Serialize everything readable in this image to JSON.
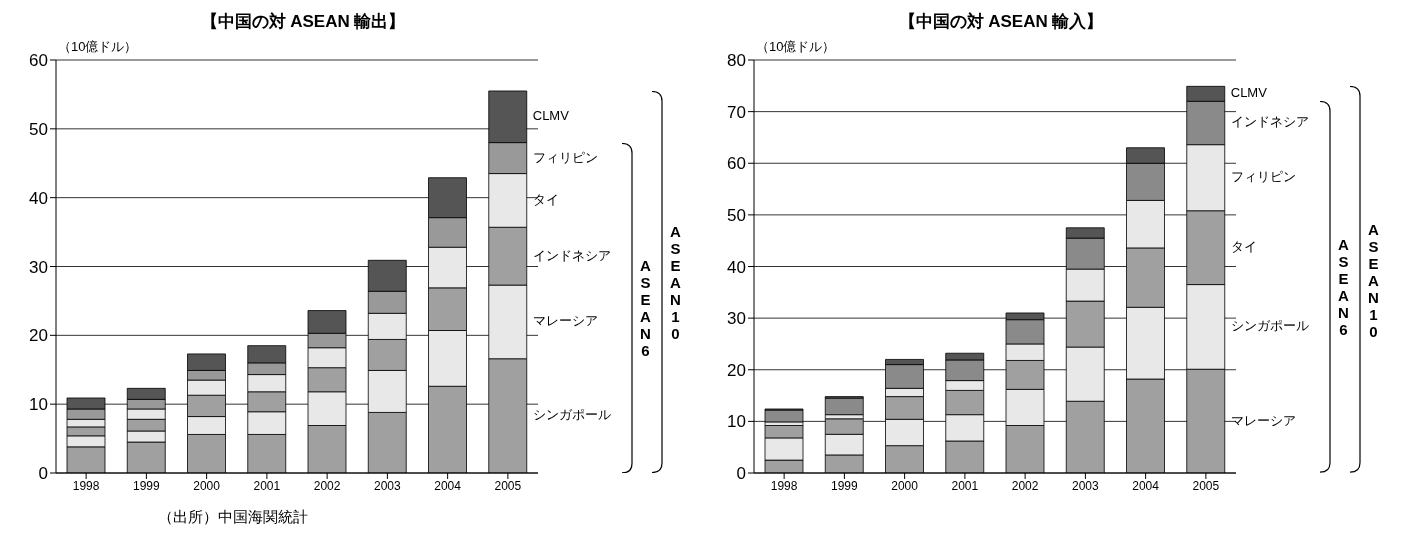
{
  "chart_data": [
    {
      "type": "bar",
      "title": "【中国の対 ASEAN 輸出】",
      "ylabel": "（10億ドル）",
      "categories": [
        "1998",
        "1999",
        "2000",
        "2001",
        "2002",
        "2003",
        "2004",
        "2005"
      ],
      "stacked": true,
      "grid": "y",
      "ylim": [
        0,
        60
      ],
      "yticks": [
        0,
        10,
        20,
        30,
        40,
        50,
        60
      ],
      "series": [
        {
          "name": "シンガポール",
          "color": "#a0a0a0",
          "values": [
            3.8,
            4.5,
            5.6,
            5.6,
            6.9,
            8.8,
            12.6,
            16.6
          ]
        },
        {
          "name": "マレーシア",
          "color": "#e8e8e8",
          "values": [
            1.6,
            1.6,
            2.6,
            3.3,
            4.9,
            6.1,
            8.1,
            10.7
          ]
        },
        {
          "name": "インドネシア",
          "color": "#a0a0a0",
          "values": [
            1.3,
            1.7,
            3.1,
            2.9,
            3.5,
            4.5,
            6.2,
            8.4
          ]
        },
        {
          "name": "タイ",
          "color": "#e8e8e8",
          "values": [
            1.1,
            1.5,
            2.2,
            2.5,
            2.9,
            3.8,
            5.9,
            7.8
          ]
        },
        {
          "name": "フィリピン",
          "color": "#999999",
          "values": [
            1.5,
            1.4,
            1.4,
            1.7,
            2.1,
            3.2,
            4.3,
            4.5
          ]
        },
        {
          "name": "CLMV",
          "color": "#555555",
          "values": [
            1.6,
            1.6,
            2.4,
            2.5,
            3.3,
            4.5,
            5.8,
            7.5
          ]
        }
      ],
      "annotations": [
        "ASEAN6",
        "ASEAN10",
        "（出所）中国海関統計"
      ]
    },
    {
      "type": "bar",
      "title": "【中国の対 ASEAN 輸入】",
      "ylabel": "（10億ドル）",
      "categories": [
        "1998",
        "1999",
        "2000",
        "2001",
        "2002",
        "2003",
        "2004",
        "2005"
      ],
      "stacked": true,
      "grid": "y",
      "ylim": [
        0,
        80
      ],
      "yticks": [
        0,
        10,
        20,
        30,
        40,
        50,
        60,
        70,
        80
      ],
      "series": [
        {
          "name": "マレーシア",
          "color": "#a0a0a0",
          "values": [
            2.5,
            3.5,
            5.3,
            6.2,
            9.2,
            13.9,
            18.2,
            20.1
          ]
        },
        {
          "name": "シンガポール",
          "color": "#e8e8e8",
          "values": [
            4.3,
            4.0,
            5.1,
            5.1,
            7.0,
            10.5,
            13.9,
            16.4
          ]
        },
        {
          "name": "タイ",
          "color": "#a0a0a0",
          "values": [
            2.4,
            3.0,
            4.4,
            4.7,
            5.6,
            8.9,
            11.5,
            14.3
          ]
        },
        {
          "name": "フィリピン",
          "color": "#e8e8e8",
          "values": [
            0.7,
            0.8,
            1.6,
            1.9,
            3.2,
            6.2,
            9.2,
            12.8
          ]
        },
        {
          "name": "インドネシア",
          "color": "#8a8a8a",
          "values": [
            2.3,
            3.2,
            4.6,
            4.0,
            4.7,
            6.0,
            7.2,
            8.4
          ]
        },
        {
          "name": "CLMV",
          "color": "#555555",
          "values": [
            0.2,
            0.3,
            1.0,
            1.3,
            1.3,
            2.0,
            3.0,
            2.9
          ]
        }
      ],
      "annotations": [
        "ASEAN6",
        "ASEAN10"
      ]
    }
  ]
}
